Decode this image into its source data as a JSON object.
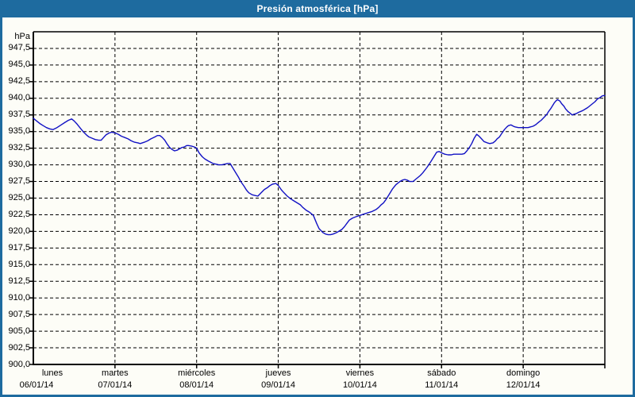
{
  "window": {
    "title": "Presión atmosférica [hPa]"
  },
  "colors": {
    "frame_blue": "#1e6b9f",
    "background": "#fdfdf7",
    "line_blue": "#1111c4",
    "grid_black": "#000000",
    "title_text": "#ffffff"
  },
  "chart_data": {
    "type": "line",
    "title": "Presión atmosférica [hPa]",
    "y_unit_label": "hPa",
    "ylabel": "hPa",
    "xlabel": "",
    "ylim": [
      900,
      950
    ],
    "ytick_step": 2.5,
    "ytick_labels": [
      "947,5",
      "945,0",
      "942,5",
      "940,0",
      "937,5",
      "935,0",
      "932,5",
      "930,0",
      "927,5",
      "925,0",
      "922,5",
      "920,0",
      "917,5",
      "915,0",
      "912,5",
      "910,0",
      "907,5",
      "905,0",
      "902,5",
      "900,0"
    ],
    "xlim_days": [
      0,
      7
    ],
    "x_days": [
      {
        "name": "lunes",
        "date": "06/01/14"
      },
      {
        "name": "martes",
        "date": "07/01/14"
      },
      {
        "name": "miércoles",
        "date": "08/01/14"
      },
      {
        "name": "jueves",
        "date": "09/01/14"
      },
      {
        "name": "viernes",
        "date": "10/01/14"
      },
      {
        "name": "sábado",
        "date": "11/01/14"
      },
      {
        "name": "domingo",
        "date": "12/01/14"
      }
    ],
    "grid": "dashed",
    "legend": "none",
    "series": [
      {
        "name": "Presión atmosférica",
        "points": [
          [
            0.0,
            937.0
          ],
          [
            0.04,
            936.6
          ],
          [
            0.08,
            936.2
          ],
          [
            0.12,
            935.9
          ],
          [
            0.16,
            935.6
          ],
          [
            0.2,
            935.4
          ],
          [
            0.24,
            935.3
          ],
          [
            0.29,
            935.6
          ],
          [
            0.34,
            936.0
          ],
          [
            0.39,
            936.4
          ],
          [
            0.43,
            936.7
          ],
          [
            0.47,
            936.9
          ],
          [
            0.5,
            936.6
          ],
          [
            0.53,
            936.2
          ],
          [
            0.57,
            935.6
          ],
          [
            0.61,
            935.0
          ],
          [
            0.65,
            934.5
          ],
          [
            0.68,
            934.2
          ],
          [
            0.72,
            934.0
          ],
          [
            0.76,
            933.8
          ],
          [
            0.8,
            933.7
          ],
          [
            0.83,
            933.7
          ],
          [
            0.86,
            934.1
          ],
          [
            0.89,
            934.5
          ],
          [
            0.93,
            934.8
          ],
          [
            0.96,
            934.9
          ],
          [
            1.0,
            934.8
          ],
          [
            1.04,
            934.6
          ],
          [
            1.08,
            934.3
          ],
          [
            1.12,
            934.1
          ],
          [
            1.16,
            933.9
          ],
          [
            1.2,
            933.6
          ],
          [
            1.24,
            933.4
          ],
          [
            1.28,
            933.3
          ],
          [
            1.31,
            933.2
          ],
          [
            1.36,
            933.4
          ],
          [
            1.4,
            933.6
          ],
          [
            1.44,
            933.9
          ],
          [
            1.49,
            934.2
          ],
          [
            1.52,
            934.4
          ],
          [
            1.55,
            934.4
          ],
          [
            1.58,
            934.1
          ],
          [
            1.61,
            933.7
          ],
          [
            1.64,
            933.1
          ],
          [
            1.67,
            932.6
          ],
          [
            1.7,
            932.3
          ],
          [
            1.73,
            932.1
          ],
          [
            1.76,
            932.2
          ],
          [
            1.79,
            932.4
          ],
          [
            1.82,
            932.6
          ],
          [
            1.85,
            932.7
          ],
          [
            1.88,
            932.9
          ],
          [
            1.9,
            932.9
          ],
          [
            1.94,
            932.8
          ],
          [
            1.97,
            932.7
          ],
          [
            2.0,
            932.5
          ],
          [
            2.03,
            931.8
          ],
          [
            2.07,
            931.2
          ],
          [
            2.1,
            930.9
          ],
          [
            2.14,
            930.6
          ],
          [
            2.17,
            930.4
          ],
          [
            2.2,
            930.2
          ],
          [
            2.24,
            930.1
          ],
          [
            2.27,
            930.0
          ],
          [
            2.31,
            930.0
          ],
          [
            2.34,
            930.1
          ],
          [
            2.38,
            930.2
          ],
          [
            2.41,
            930.2
          ],
          [
            2.44,
            929.6
          ],
          [
            2.48,
            928.8
          ],
          [
            2.51,
            928.2
          ],
          [
            2.54,
            927.5
          ],
          [
            2.58,
            926.8
          ],
          [
            2.61,
            926.2
          ],
          [
            2.64,
            925.8
          ],
          [
            2.68,
            925.5
          ],
          [
            2.71,
            925.4
          ],
          [
            2.75,
            925.3
          ],
          [
            2.79,
            925.8
          ],
          [
            2.83,
            926.3
          ],
          [
            2.87,
            926.6
          ],
          [
            2.9,
            926.9
          ],
          [
            2.93,
            927.1
          ],
          [
            2.97,
            927.2
          ],
          [
            3.0,
            926.9
          ],
          [
            3.04,
            926.2
          ],
          [
            3.07,
            925.8
          ],
          [
            3.11,
            925.3
          ],
          [
            3.15,
            924.9
          ],
          [
            3.19,
            924.6
          ],
          [
            3.23,
            924.3
          ],
          [
            3.27,
            924.0
          ],
          [
            3.3,
            923.6
          ],
          [
            3.34,
            923.2
          ],
          [
            3.38,
            922.9
          ],
          [
            3.43,
            922.4
          ],
          [
            3.47,
            921.2
          ],
          [
            3.5,
            920.4
          ],
          [
            3.55,
            919.8
          ],
          [
            3.58,
            919.6
          ],
          [
            3.61,
            919.5
          ],
          [
            3.64,
            919.5
          ],
          [
            3.67,
            919.6
          ],
          [
            3.71,
            919.8
          ],
          [
            3.74,
            920.0
          ],
          [
            3.78,
            920.3
          ],
          [
            3.81,
            920.7
          ],
          [
            3.84,
            921.2
          ],
          [
            3.87,
            921.7
          ],
          [
            3.91,
            922.0
          ],
          [
            3.95,
            922.2
          ],
          [
            4.0,
            922.4
          ],
          [
            4.05,
            922.6
          ],
          [
            4.1,
            922.8
          ],
          [
            4.15,
            923.0
          ],
          [
            4.2,
            923.3
          ],
          [
            4.23,
            923.6
          ],
          [
            4.26,
            924.0
          ],
          [
            4.29,
            924.3
          ],
          [
            4.32,
            924.8
          ],
          [
            4.36,
            925.6
          ],
          [
            4.4,
            926.4
          ],
          [
            4.44,
            927.0
          ],
          [
            4.49,
            927.5
          ],
          [
            4.52,
            927.7
          ],
          [
            4.55,
            927.8
          ],
          [
            4.58,
            927.7
          ],
          [
            4.61,
            927.5
          ],
          [
            4.65,
            927.5
          ],
          [
            4.68,
            927.8
          ],
          [
            4.71,
            928.1
          ],
          [
            4.74,
            928.4
          ],
          [
            4.77,
            928.8
          ],
          [
            4.82,
            929.6
          ],
          [
            4.87,
            930.5
          ],
          [
            4.9,
            931.1
          ],
          [
            4.94,
            931.9
          ],
          [
            4.97,
            932.0
          ],
          [
            5.0,
            931.8
          ],
          [
            5.04,
            931.6
          ],
          [
            5.08,
            931.5
          ],
          [
            5.12,
            931.5
          ],
          [
            5.15,
            931.6
          ],
          [
            5.19,
            931.6
          ],
          [
            5.22,
            931.6
          ],
          [
            5.25,
            931.6
          ],
          [
            5.28,
            931.7
          ],
          [
            5.31,
            932.1
          ],
          [
            5.34,
            932.6
          ],
          [
            5.37,
            933.2
          ],
          [
            5.4,
            934.0
          ],
          [
            5.43,
            934.6
          ],
          [
            5.46,
            934.3
          ],
          [
            5.49,
            933.9
          ],
          [
            5.52,
            933.5
          ],
          [
            5.56,
            933.3
          ],
          [
            5.59,
            933.2
          ],
          [
            5.63,
            933.3
          ],
          [
            5.66,
            933.6
          ],
          [
            5.68,
            933.9
          ],
          [
            5.71,
            934.2
          ],
          [
            5.73,
            934.6
          ],
          [
            5.77,
            935.3
          ],
          [
            5.8,
            935.7
          ],
          [
            5.82,
            935.9
          ],
          [
            5.85,
            936.0
          ],
          [
            5.88,
            935.8
          ],
          [
            5.9,
            935.7
          ],
          [
            5.94,
            935.6
          ],
          [
            5.97,
            935.6
          ],
          [
            6.0,
            935.6
          ],
          [
            6.03,
            935.6
          ],
          [
            6.06,
            935.6
          ],
          [
            6.09,
            935.7
          ],
          [
            6.12,
            935.8
          ],
          [
            6.15,
            936.0
          ],
          [
            6.17,
            936.2
          ],
          [
            6.2,
            936.5
          ],
          [
            6.22,
            936.7
          ],
          [
            6.26,
            937.2
          ],
          [
            6.29,
            937.6
          ],
          [
            6.31,
            938.0
          ],
          [
            6.34,
            938.5
          ],
          [
            6.36,
            938.9
          ],
          [
            6.38,
            939.3
          ],
          [
            6.4,
            939.6
          ],
          [
            6.42,
            939.8
          ],
          [
            6.45,
            939.6
          ],
          [
            6.47,
            939.2
          ],
          [
            6.5,
            938.8
          ],
          [
            6.52,
            938.4
          ],
          [
            6.55,
            938.0
          ],
          [
            6.57,
            937.8
          ],
          [
            6.6,
            937.5
          ],
          [
            6.62,
            937.6
          ],
          [
            6.65,
            937.7
          ],
          [
            6.68,
            937.9
          ],
          [
            6.72,
            938.1
          ],
          [
            6.75,
            938.3
          ],
          [
            6.79,
            938.6
          ],
          [
            6.82,
            938.9
          ],
          [
            6.85,
            939.2
          ],
          [
            6.88,
            939.5
          ],
          [
            6.91,
            939.9
          ],
          [
            6.94,
            940.1
          ],
          [
            6.96,
            940.3
          ],
          [
            6.98,
            940.4
          ],
          [
            7.0,
            940.4
          ]
        ]
      }
    ]
  }
}
